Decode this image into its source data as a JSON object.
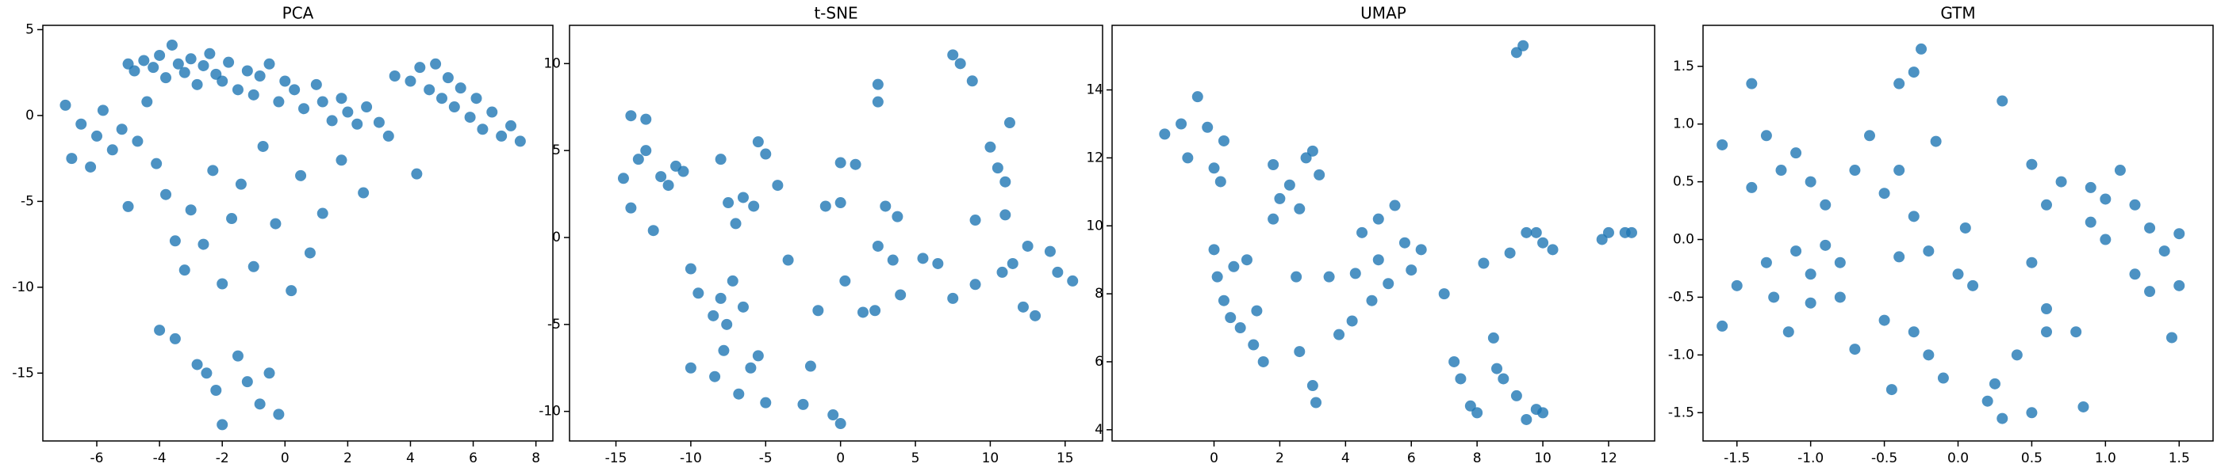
{
  "chart_data": [
    {
      "type": "scatter",
      "title": "PCA",
      "color": "#1f77b4",
      "xlim": [
        -7.72,
        8.54
      ],
      "ylim": [
        -18.95,
        5.25
      ],
      "xticks": [
        -6,
        -4,
        -2,
        0,
        2,
        4,
        6,
        8
      ],
      "yticks": [
        -15,
        -10,
        -5,
        0,
        5
      ],
      "x": [
        -5,
        -4.8,
        -4.5,
        -4.2,
        -4,
        -3.8,
        -3.6,
        -3.4,
        -3.2,
        -3,
        -2.8,
        -2.6,
        -2.4,
        -2.2,
        -2,
        -1.8,
        -1.5,
        -1.2,
        -1,
        -0.8,
        -0.5,
        -0.2,
        0,
        0.3,
        0.6,
        1,
        1.2,
        1.5,
        1.8,
        2,
        2.3,
        2.6,
        3,
        3.3,
        4,
        4.3,
        4.6,
        4.8,
        5,
        5.2,
        5.4,
        5.6,
        5.9,
        6.1,
        6.3,
        6.6,
        6.9,
        7.2,
        7.5,
        3.5,
        -7,
        -6.8,
        -6.5,
        -6.2,
        -6,
        -5.8,
        -5.5,
        -5.2,
        -5,
        -4.7,
        -4.4,
        -4.1,
        -3.8,
        -3.5,
        -3.2,
        -3,
        -2.6,
        -2.3,
        -2,
        -1.7,
        -1.4,
        -1,
        -0.7,
        -0.3,
        0.2,
        0.5,
        0.8,
        1.2,
        1.8,
        2.5,
        4.2,
        -4,
        -3.5,
        -2.5,
        -2.2,
        -2,
        -1.5,
        -1.2,
        -0.8,
        -0.5,
        -0.2,
        -2.8
      ],
      "values": [
        3,
        2.6,
        3.2,
        2.8,
        3.5,
        2.2,
        4.1,
        3,
        2.5,
        3.3,
        1.8,
        2.9,
        3.6,
        2.4,
        2,
        3.1,
        1.5,
        2.6,
        1.2,
        2.3,
        3,
        0.8,
        2,
        1.5,
        0.4,
        1.8,
        0.8,
        -0.3,
        1,
        0.2,
        -0.5,
        0.5,
        -0.4,
        -1.2,
        2,
        2.8,
        1.5,
        3,
        1,
        2.2,
        0.5,
        1.6,
        -0.1,
        1,
        -0.8,
        0.2,
        -1.2,
        -0.6,
        -1.5,
        2.3,
        0.6,
        -2.5,
        -0.5,
        -3,
        -1.2,
        0.3,
        -2,
        -0.8,
        -5.3,
        -1.5,
        0.8,
        -2.8,
        -4.6,
        -7.3,
        -9,
        -5.5,
        -7.5,
        -3.2,
        -9.8,
        -6,
        -4,
        -8.8,
        -1.8,
        -6.3,
        -10.2,
        -3.5,
        -8,
        -5.7,
        -2.6,
        -4.5,
        -3.4,
        -12.5,
        -13,
        -15,
        -16,
        -18,
        -14,
        -15.5,
        -16.8,
        -15,
        -17.4,
        -14.5
      ]
    },
    {
      "type": "scatter",
      "title": "t-SNE",
      "color": "#1f77b4",
      "xlim": [
        -18.1,
        17.5
      ],
      "ylim": [
        -11.7,
        12.2
      ],
      "xticks": [
        -15,
        -10,
        -5,
        0,
        5,
        10,
        15
      ],
      "yticks": [
        -10,
        -5,
        0,
        5,
        10
      ],
      "x": [
        -14,
        -13,
        -14.5,
        -13.5,
        -13,
        -12,
        -11.5,
        -11,
        -10.5,
        -12.5,
        -14,
        -10,
        -9.5,
        -10,
        -8.5,
        -8,
        -7.6,
        -7.2,
        -8.4,
        -7.8,
        -6.8,
        -6,
        -5.5,
        -6.5,
        -5,
        -7.5,
        -6.5,
        -5.8,
        -7,
        -5.5,
        -5,
        -4.2,
        -3.5,
        -2.5,
        -2,
        -1.5,
        -1,
        0,
        -0.5,
        0,
        0.3,
        0,
        1,
        1.5,
        2.3,
        2.5,
        2.5,
        3,
        3.5,
        2.5,
        4,
        3.8,
        7.5,
        8,
        8.8,
        7.5,
        9,
        10,
        10.5,
        11.3,
        11,
        10.8,
        11.5,
        11,
        12.2,
        13,
        14,
        14.5,
        15.5,
        12.5,
        6.5,
        5.5,
        9,
        -8
      ],
      "values": [
        7,
        6.8,
        3.4,
        4.5,
        5,
        3.5,
        3,
        4.1,
        3.8,
        0.4,
        1.7,
        -1.8,
        -3.2,
        -7.5,
        -4.5,
        -3.5,
        -5,
        -2.5,
        -8,
        -6.5,
        -9,
        -7.5,
        -6.8,
        -4,
        -9.5,
        2,
        2.3,
        1.8,
        0.8,
        5.5,
        4.8,
        3,
        -1.3,
        -9.6,
        -7.4,
        -4.2,
        1.8,
        2,
        -10.2,
        -10.7,
        -2.5,
        4.3,
        4.2,
        -4.3,
        -4.2,
        8.8,
        7.8,
        1.8,
        -1.3,
        -0.5,
        -3.3,
        1.2,
        10.5,
        10,
        9,
        -3.5,
        1,
        5.2,
        4,
        6.6,
        3.2,
        -2,
        -1.5,
        1.3,
        -4,
        -4.5,
        -0.8,
        -2,
        -2.5,
        -0.5,
        -1.5,
        -1.2,
        -2.7,
        4.5
      ]
    },
    {
      "type": "scatter",
      "title": "UMAP",
      "color": "#1f77b4",
      "xlim": [
        -3.1,
        13.4
      ],
      "ylim": [
        3.67,
        15.9
      ],
      "xticks": [
        0,
        2,
        4,
        6,
        8,
        10,
        12
      ],
      "yticks": [
        4,
        6,
        8,
        10,
        12,
        14
      ],
      "x": [
        -1.5,
        -1,
        -0.5,
        -0.2,
        -0.8,
        0,
        0.3,
        0.2,
        0,
        0.1,
        0.3,
        0.6,
        0.8,
        1,
        1.2,
        1.5,
        1.3,
        0.5,
        1.8,
        2,
        2.3,
        2.6,
        1.8,
        2.8,
        3.2,
        3,
        2.5,
        3,
        3.1,
        2.6,
        3.5,
        3.8,
        4.2,
        4.5,
        4.3,
        4.8,
        5,
        5.3,
        5.5,
        5,
        5.8,
        6,
        6.3,
        7,
        7.3,
        7.5,
        7.8,
        8,
        8.2,
        8.5,
        8.6,
        8.8,
        9.2,
        9.5,
        9.8,
        10,
        9.2,
        9.4,
        9,
        9.5,
        10,
        10.3,
        9.8,
        12,
        12.5,
        12.7,
        11.8
      ],
      "values": [
        12.7,
        13,
        13.8,
        12.9,
        12,
        11.7,
        12.5,
        11.3,
        9.3,
        8.5,
        7.8,
        8.8,
        7,
        9,
        6.5,
        6,
        7.5,
        7.3,
        11.8,
        10.8,
        11.2,
        10.5,
        10.2,
        12,
        11.5,
        12.2,
        8.5,
        5.3,
        4.8,
        6.3,
        8.5,
        6.8,
        7.2,
        9.8,
        8.6,
        7.8,
        9,
        8.3,
        10.6,
        10.2,
        9.5,
        8.7,
        9.3,
        8,
        6,
        5.5,
        4.7,
        4.5,
        8.9,
        6.7,
        5.8,
        5.5,
        5,
        4.3,
        4.6,
        4.5,
        15.1,
        15.3,
        9.2,
        9.8,
        9.5,
        9.3,
        9.8,
        9.8,
        9.8,
        9.8,
        9.6
      ]
    },
    {
      "type": "scatter",
      "title": "GTM",
      "color": "#1f77b4",
      "xlim": [
        -1.73,
        1.73
      ],
      "ylim": [
        -1.745,
        1.855
      ],
      "xticks": [
        -1.5,
        {
          "value": -1,
          "label": "-1.0"
        },
        -0.5,
        {
          "value": 0,
          "label": "0.0"
        },
        0.5,
        {
          "value": 1,
          "label": "1.0"
        },
        1.5
      ],
      "yticks": [
        -1.5,
        {
          "value": -1,
          "label": "-1.0"
        },
        -0.5,
        {
          "value": 0,
          "label": "0.0"
        },
        0.5,
        {
          "value": 1,
          "label": "1.0"
        },
        1.5
      ],
      "x": [
        -1.6,
        -1.4,
        -1.3,
        -1.1,
        -1,
        -0.9,
        -1.2,
        -1.4,
        -1.5,
        -1.3,
        -1.1,
        -1,
        -0.9,
        -0.8,
        -1.25,
        -1.6,
        -1.15,
        -1,
        -0.8,
        -0.7,
        -0.6,
        -0.5,
        -0.4,
        -0.3,
        -0.25,
        -0.4,
        -0.3,
        -0.2,
        -0.4,
        -0.5,
        -0.3,
        -0.2,
        -0.1,
        0,
        0.1,
        0.05,
        0.2,
        0.3,
        0.25,
        0.5,
        0.4,
        0.6,
        0.3,
        0.5,
        0.6,
        0.7,
        0.5,
        0.6,
        0.8,
        0.9,
        0.9,
        1,
        1.1,
        1.2,
        1.3,
        1,
        1.2,
        1.4,
        1.5,
        1.45,
        1.5,
        1.3,
        -0.15,
        0.85,
        -0.45,
        -0.7
      ],
      "values": [
        0.82,
        1.35,
        0.9,
        0.75,
        0.5,
        0.3,
        0.6,
        0.45,
        -0.4,
        -0.2,
        -0.1,
        -0.3,
        -0.05,
        -0.2,
        -0.5,
        -0.75,
        -0.8,
        -0.55,
        -0.5,
        0.6,
        0.9,
        0.4,
        1.35,
        1.45,
        1.65,
        0.6,
        0.2,
        -0.1,
        -0.15,
        -0.7,
        -0.8,
        -1,
        -1.2,
        -0.3,
        -0.4,
        0.1,
        -1.4,
        -1.55,
        -1.25,
        -1.5,
        -1,
        -0.8,
        1.2,
        0.65,
        0.3,
        0.5,
        -0.2,
        -0.6,
        -0.8,
        0.15,
        0.45,
        0.35,
        0.6,
        0.3,
        0.1,
        0,
        -0.3,
        -0.1,
        -0.4,
        -0.85,
        0.05,
        -0.45,
        0.85,
        -1.45,
        -1.3,
        -0.95
      ]
    }
  ]
}
